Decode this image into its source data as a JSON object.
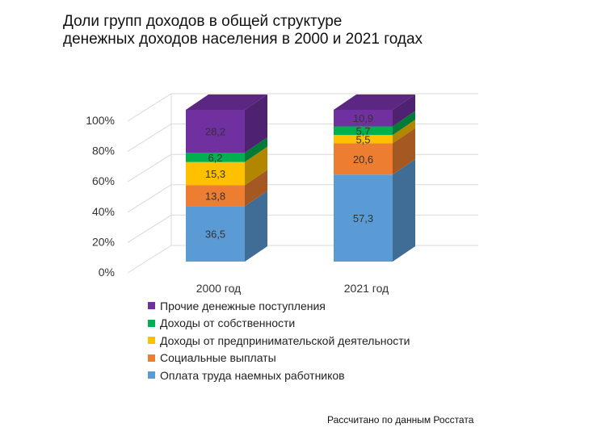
{
  "title_lines": [
    "Доли групп доходов в общей структуре",
    "денежных доходов населения в 2000 и 2021 годах"
  ],
  "source": "Рассчитано по данным Росстата",
  "chart_data": {
    "type": "bar",
    "stacked": true,
    "style": "3d",
    "categories": [
      "2000 год",
      "2021 год"
    ],
    "series": [
      {
        "name": "Оплата труда наемных работников",
        "values": [
          36.5,
          57.3
        ],
        "labels": [
          "36,5",
          "57,3"
        ],
        "color": "#5b9bd5"
      },
      {
        "name": "Социальные выплаты",
        "values": [
          13.8,
          20.6
        ],
        "labels": [
          "13,8",
          "20,6"
        ],
        "color": "#ed7d31"
      },
      {
        "name": "Доходы от предпринимательской деятельности",
        "values": [
          15.3,
          5.5
        ],
        "labels": [
          "15,3",
          "5,5"
        ],
        "color": "#ffc000"
      },
      {
        "name": "Доходы от собственности",
        "values": [
          6.2,
          5.7
        ],
        "labels": [
          "6,2",
          "5,7"
        ],
        "color": "#00b050"
      },
      {
        "name": "Прочие денежные поступления",
        "values": [
          28.2,
          10.9
        ],
        "labels": [
          "28,2",
          "10,9"
        ],
        "color": "#7030a0"
      }
    ],
    "yticks": [
      "0%",
      "20%",
      "40%",
      "60%",
      "80%",
      "100%"
    ],
    "ylim": [
      0,
      100
    ],
    "legend_order": [
      4,
      3,
      2,
      1,
      0
    ],
    "legend_position": "bottom"
  }
}
